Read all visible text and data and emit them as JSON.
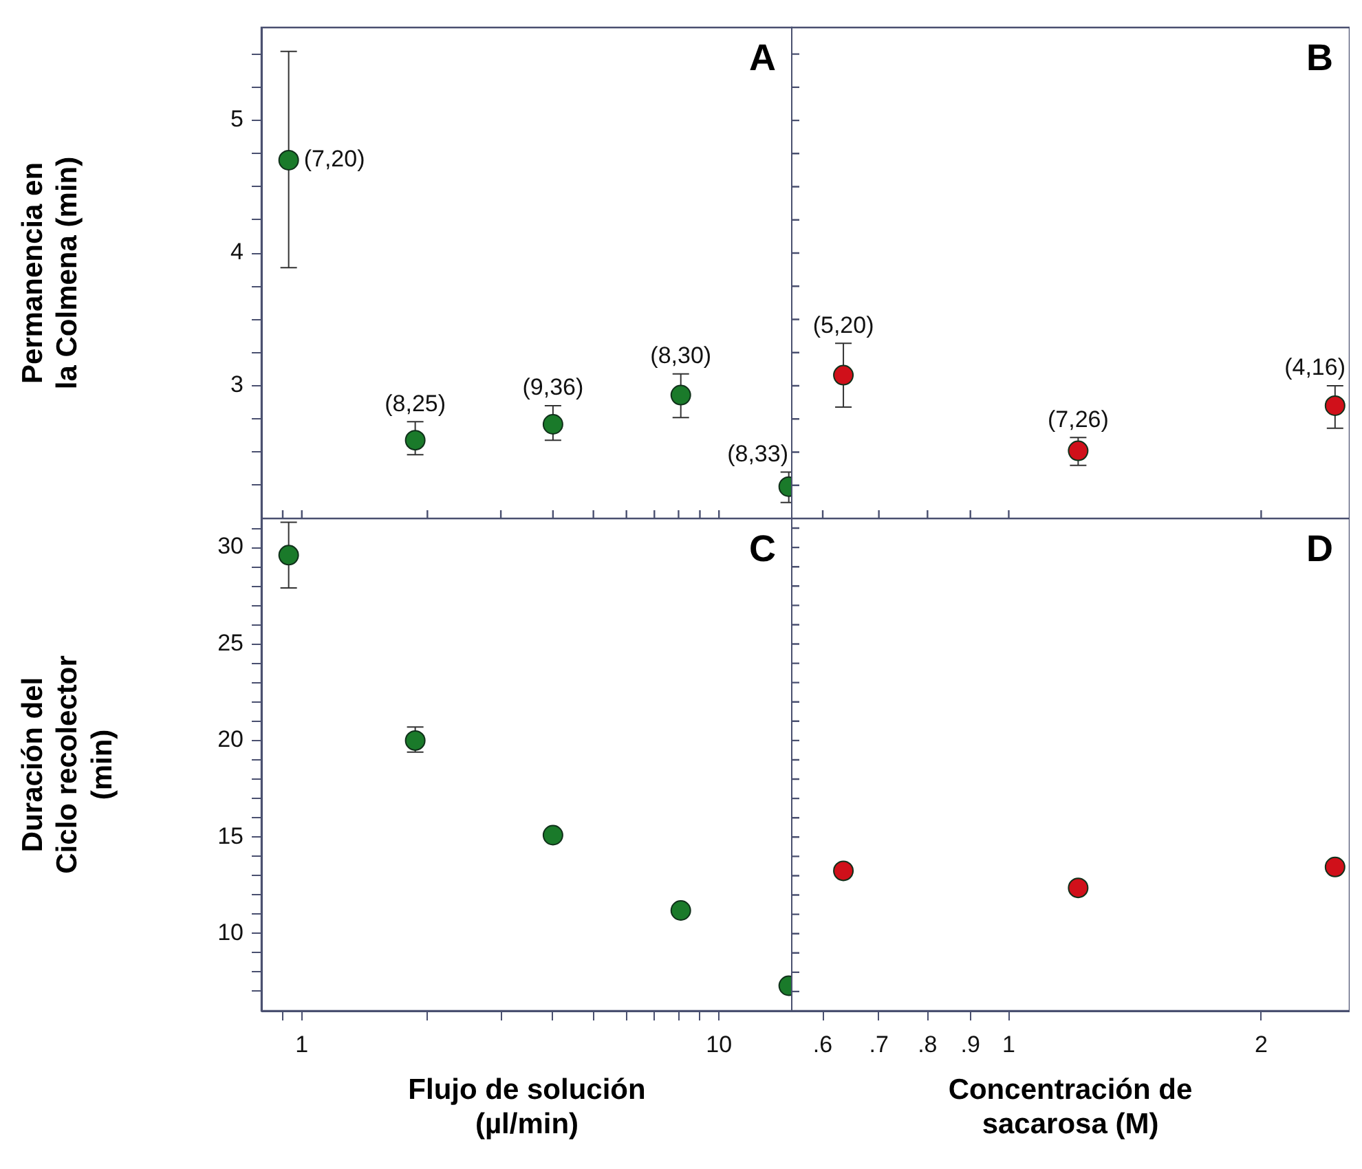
{
  "chart_data": [
    {
      "type": "scatter",
      "title": "A",
      "ylabel": "Permanencia en la Colmena (min)",
      "x": [
        0.93,
        1.87,
        4.0,
        8.1,
        14.7
      ],
      "values": [
        4.7,
        2.59,
        2.71,
        2.93,
        2.24
      ],
      "errors": [
        [
          3.89,
          5.52
        ],
        [
          2.48,
          2.73
        ],
        [
          2.59,
          2.85
        ],
        [
          2.76,
          3.09
        ],
        [
          2.12,
          2.35
        ]
      ],
      "color": "#1a7a2a",
      "marker": "circle",
      "log": "x",
      "xlim": [
        0.8,
        15
      ],
      "xticks": [
        {
          "value": 0.9,
          "label": null
        },
        1,
        {
          "value": 2,
          "label": null
        },
        {
          "value": 3,
          "label": null
        },
        {
          "value": 4,
          "label": null
        },
        {
          "value": 5,
          "label": null
        },
        {
          "value": 6,
          "label": null
        },
        {
          "value": 7,
          "label": null
        },
        {
          "value": 8,
          "label": null
        },
        {
          "value": 9,
          "label": null
        },
        10
      ],
      "ylim": [
        2,
        5.7
      ],
      "yticks": [
        {
          "value": 2.25,
          "label": null
        },
        {
          "value": 2.5,
          "label": null
        },
        {
          "value": 2.75,
          "label": null
        },
        3,
        {
          "value": 3.25,
          "label": null
        },
        {
          "value": 3.5,
          "label": null
        },
        {
          "value": 3.75,
          "label": null
        },
        4,
        {
          "value": 4.25,
          "label": null
        },
        {
          "value": 4.5,
          "label": null
        },
        {
          "value": 4.75,
          "label": null
        },
        5,
        {
          "value": 5.25,
          "label": null
        },
        {
          "value": 5.5,
          "label": null
        }
      ],
      "tick_labels": "y",
      "annotations": [
        {
          "text": "(7,20)",
          "x": 0.93,
          "y": 4.7
        },
        {
          "text": "(8,25)",
          "x": 1.87,
          "y": 2.59
        },
        {
          "text": "(9,36)",
          "x": 4.0,
          "y": 2.71
        },
        {
          "text": "(8,30)",
          "x": 8.1,
          "y": 2.93
        },
        {
          "text": "(8,33)",
          "x": 14.7,
          "y": 2.24
        }
      ]
    },
    {
      "type": "scatter",
      "title": "B",
      "x": [
        0.635,
        1.21,
        2.45
      ],
      "values": [
        3.08,
        2.51,
        2.85
      ],
      "errors": [
        [
          2.84,
          3.32
        ],
        [
          2.4,
          2.61
        ],
        [
          2.68,
          3.0
        ]
      ],
      "color": "#d0101a",
      "marker": "circle",
      "log": "x",
      "xlim": [
        0.55,
        2.55
      ],
      "xticks": [
        {
          "value": 0.6,
          "label": null
        },
        {
          "value": 0.7,
          "label": null
        },
        {
          "value": 0.8,
          "label": null
        },
        {
          "value": 0.9,
          "label": null
        },
        {
          "value": 1,
          "label": null
        },
        {
          "value": 2,
          "label": null
        }
      ],
      "ylim": [
        2,
        5.7
      ],
      "yticks": [
        {
          "value": 2.25,
          "label": null
        },
        {
          "value": 2.5,
          "label": null
        },
        {
          "value": 2.75,
          "label": null
        },
        3,
        {
          "value": 3.25,
          "label": null
        },
        {
          "value": 3.5,
          "label": null
        },
        {
          "value": 3.75,
          "label": null
        },
        4,
        {
          "value": 4.25,
          "label": null
        },
        {
          "value": 4.5,
          "label": null
        },
        {
          "value": 4.75,
          "label": null
        },
        5,
        {
          "value": 5.25,
          "label": null
        },
        {
          "value": 5.5,
          "label": null
        }
      ],
      "tick_labels": false,
      "annotations": [
        {
          "text": "(5,20)",
          "x": 0.635,
          "y": 3.08
        },
        {
          "text": "(7,26)",
          "x": 1.21,
          "y": 2.51
        },
        {
          "text": "(4,16)",
          "x": 2.45,
          "y": 2.85
        }
      ]
    },
    {
      "type": "scatter",
      "title": "C",
      "ylabel": "Duración del Ciclo recolector (min)",
      "xlabel": "Flujo de solución (µl/min)",
      "x": [
        0.93,
        1.87,
        4.0,
        8.1,
        14.7
      ],
      "values": [
        29.6,
        20.0,
        15.1,
        11.2,
        7.3
      ],
      "errors": [
        [
          27.9,
          31.3
        ],
        [
          19.4,
          20.7
        ],
        null,
        null,
        null
      ],
      "color": "#1a7a2a",
      "marker": "circle",
      "log": "x",
      "xlim": [
        0.8,
        15
      ],
      "xticks": [
        {
          "value": 0.9,
          "label": null
        },
        1,
        {
          "value": 2,
          "label": null
        },
        {
          "value": 3,
          "label": null
        },
        {
          "value": 4,
          "label": null
        },
        {
          "value": 5,
          "label": null
        },
        {
          "value": 6,
          "label": null
        },
        {
          "value": 7,
          "label": null
        },
        {
          "value": 8,
          "label": null
        },
        {
          "value": 9,
          "label": null
        },
        10
      ],
      "ylim": [
        6,
        31.5
      ],
      "yticks": [
        {
          "value": 7,
          "label": null
        },
        {
          "value": 8,
          "label": null
        },
        {
          "value": 9,
          "label": null
        },
        10,
        {
          "value": 11,
          "label": null
        },
        {
          "value": 12,
          "label": null
        },
        {
          "value": 13,
          "label": null
        },
        {
          "value": 14,
          "label": null
        },
        15,
        {
          "value": 16,
          "label": null
        },
        {
          "value": 17,
          "label": null
        },
        {
          "value": 18,
          "label": null
        },
        {
          "value": 19,
          "label": null
        },
        20,
        {
          "value": 21,
          "label": null
        },
        {
          "value": 22,
          "label": null
        },
        {
          "value": 23,
          "label": null
        },
        {
          "value": 24,
          "label": null
        },
        25,
        {
          "value": 26,
          "label": null
        },
        {
          "value": 27,
          "label": null
        },
        {
          "value": 28,
          "label": null
        },
        {
          "value": 29,
          "label": null
        },
        30,
        {
          "value": 31,
          "label": null
        }
      ]
    },
    {
      "type": "scatter",
      "title": "D",
      "xlabel": "Concentración de sacarosa (M)",
      "x": [
        0.635,
        1.21,
        2.45
      ],
      "values": [
        13.25,
        12.37,
        13.45
      ],
      "color": "#d0101a",
      "marker": "circle",
      "log": "x",
      "xlim": [
        0.55,
        2.55
      ],
      "xticks": [
        {
          "value": 0.6,
          "label": ".6"
        },
        {
          "value": 0.7,
          "label": ".7"
        },
        {
          "value": 0.8,
          "label": ".8"
        },
        {
          "value": 0.9,
          "label": ".9"
        },
        1,
        2
      ],
      "ylim": [
        6,
        31.5
      ],
      "yticks": [
        {
          "value": 7,
          "label": null
        },
        {
          "value": 8,
          "label": null
        },
        {
          "value": 9,
          "label": null
        },
        10,
        {
          "value": 11,
          "label": null
        },
        {
          "value": 12,
          "label": null
        },
        {
          "value": 13,
          "label": null
        },
        {
          "value": 14,
          "label": null
        },
        15,
        {
          "value": 16,
          "label": null
        },
        {
          "value": 17,
          "label": null
        },
        {
          "value": 18,
          "label": null
        },
        {
          "value": 19,
          "label": null
        },
        20,
        {
          "value": 21,
          "label": null
        },
        {
          "value": 22,
          "label": null
        },
        {
          "value": 23,
          "label": null
        },
        {
          "value": 24,
          "label": null
        },
        25,
        {
          "value": 26,
          "label": null
        },
        {
          "value": 27,
          "label": null
        },
        {
          "value": 28,
          "label": null
        },
        {
          "value": 29,
          "label": null
        },
        30,
        {
          "value": 31,
          "label": null
        }
      ],
      "tick_labels": "x"
    }
  ]
}
